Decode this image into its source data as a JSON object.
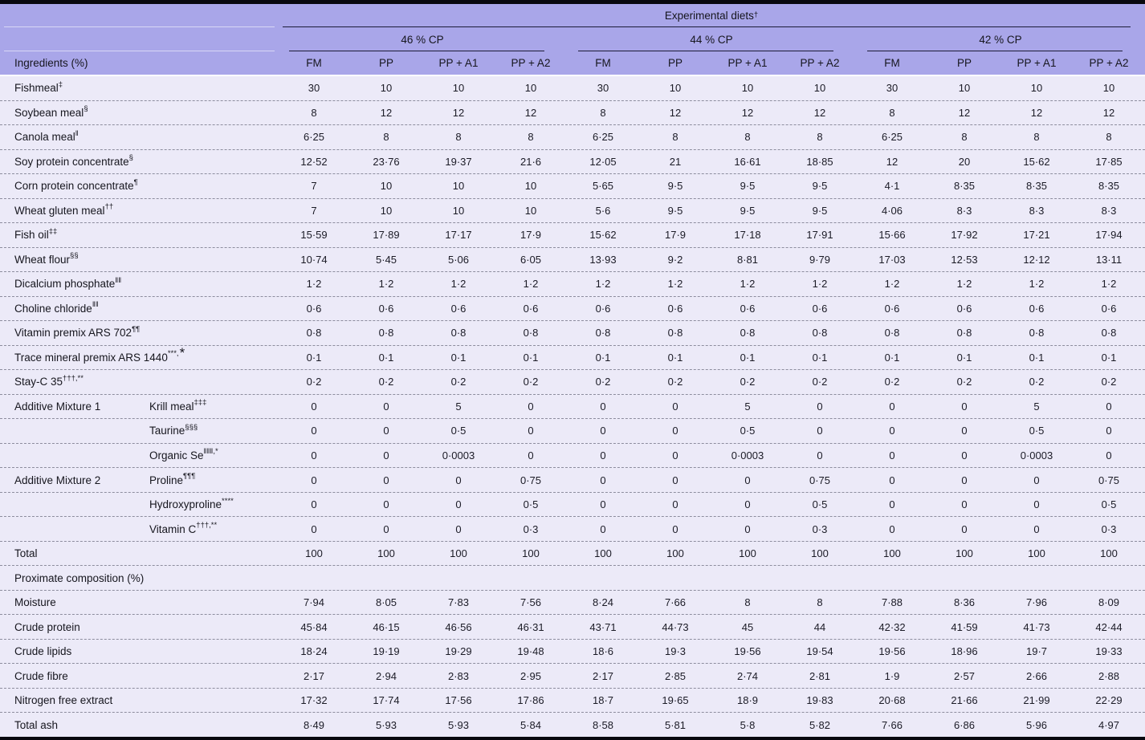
{
  "colors": {
    "header_bg": "#a9a6e9",
    "body_bg": "#eceaf8",
    "rule_dark": "#1c1c38",
    "border_black": "#08080f"
  },
  "header": {
    "title": "Experimental diets",
    "title_sup": "†",
    "row_header": "Ingredients (%)",
    "groups": [
      {
        "label": "46 % CP",
        "cols": [
          "FM",
          "PP",
          "PP + A1",
          "PP + A2"
        ]
      },
      {
        "label": "44 % CP",
        "cols": [
          "FM",
          "PP",
          "PP + A1",
          "PP + A2"
        ]
      },
      {
        "label": "42 % CP",
        "cols": [
          "FM",
          "PP",
          "PP + A1",
          "PP + A2"
        ]
      }
    ]
  },
  "table": {
    "rows": [
      {
        "label": "Fishmeal",
        "sup": "‡",
        "values": [
          "30",
          "10",
          "10",
          "10",
          "30",
          "10",
          "10",
          "10",
          "30",
          "10",
          "10",
          "10"
        ]
      },
      {
        "label": "Soybean meal",
        "sup": "§",
        "values": [
          "8",
          "12",
          "12",
          "12",
          "8",
          "12",
          "12",
          "12",
          "8",
          "12",
          "12",
          "12"
        ]
      },
      {
        "label": "Canola meal",
        "sup": "‖",
        "values": [
          "6·25",
          "8",
          "8",
          "8",
          "6·25",
          "8",
          "8",
          "8",
          "6·25",
          "8",
          "8",
          "8"
        ]
      },
      {
        "label": "Soy protein concentrate",
        "sup": "§",
        "values": [
          "12·52",
          "23·76",
          "19·37",
          "21·6",
          "12·05",
          "21",
          "16·61",
          "18·85",
          "12",
          "20",
          "15·62",
          "17·85"
        ]
      },
      {
        "label": "Corn protein concentrate",
        "sup": "¶",
        "values": [
          "7",
          "10",
          "10",
          "10",
          "5·65",
          "9·5",
          "9·5",
          "9·5",
          "4·1",
          "8·35",
          "8·35",
          "8·35"
        ]
      },
      {
        "label": "Wheat gluten meal",
        "sup": "††",
        "values": [
          "7",
          "10",
          "10",
          "10",
          "5·6",
          "9·5",
          "9·5",
          "9·5",
          "4·06",
          "8·3",
          "8·3",
          "8·3"
        ]
      },
      {
        "label": "Fish oil",
        "sup": "‡‡",
        "values": [
          "15·59",
          "17·89",
          "17·17",
          "17·9",
          "15·62",
          "17·9",
          "17·18",
          "17·91",
          "15·66",
          "17·92",
          "17·21",
          "17·94"
        ]
      },
      {
        "label": "Wheat flour",
        "sup": "§§",
        "values": [
          "10·74",
          "5·45",
          "5·06",
          "6·05",
          "13·93",
          "9·2",
          "8·81",
          "9·79",
          "17·03",
          "12·53",
          "12·12",
          "13·11"
        ]
      },
      {
        "label": "Dicalcium phosphate",
        "sup": "‖‖",
        "values": [
          "1·2",
          "1·2",
          "1·2",
          "1·2",
          "1·2",
          "1·2",
          "1·2",
          "1·2",
          "1·2",
          "1·2",
          "1·2",
          "1·2"
        ]
      },
      {
        "label": "Choline chloride",
        "sup": "‖‖",
        "values": [
          "0·6",
          "0·6",
          "0·6",
          "0·6",
          "0·6",
          "0·6",
          "0·6",
          "0·6",
          "0·6",
          "0·6",
          "0·6",
          "0·6"
        ]
      },
      {
        "label": "Vitamin premix ARS 702",
        "sup": "¶¶",
        "values": [
          "0·8",
          "0·8",
          "0·8",
          "0·8",
          "0·8",
          "0·8",
          "0·8",
          "0·8",
          "0·8",
          "0·8",
          "0·8",
          "0·8"
        ]
      },
      {
        "label": "Trace mineral premix ARS 1440",
        "sup": "***,",
        "star": "*",
        "values": [
          "0·1",
          "0·1",
          "0·1",
          "0·1",
          "0·1",
          "0·1",
          "0·1",
          "0·1",
          "0·1",
          "0·1",
          "0·1",
          "0·1"
        ]
      },
      {
        "label": "Stay-C 35",
        "sup": "†††,**",
        "values": [
          "0·2",
          "0·2",
          "0·2",
          "0·2",
          "0·2",
          "0·2",
          "0·2",
          "0·2",
          "0·2",
          "0·2",
          "0·2",
          "0·2"
        ]
      },
      {
        "group": "Additive Mixture 1",
        "label": "Krill meal",
        "sup": "‡‡‡",
        "values": [
          "0",
          "0",
          "5",
          "0",
          "0",
          "0",
          "5",
          "0",
          "0",
          "0",
          "5",
          "0"
        ]
      },
      {
        "sub": true,
        "label": "Taurine",
        "sup": "§§§",
        "values": [
          "0",
          "0",
          "0·5",
          "0",
          "0",
          "0",
          "0·5",
          "0",
          "0",
          "0",
          "0·5",
          "0"
        ]
      },
      {
        "sub": true,
        "label": "Organic Se",
        "sup": "‖‖‖,*",
        "values": [
          "0",
          "0",
          "0·0003",
          "0",
          "0",
          "0",
          "0·0003",
          "0",
          "0",
          "0",
          "0·0003",
          "0"
        ]
      },
      {
        "group": "Additive Mixture 2",
        "label": "Proline",
        "sup": "¶¶¶",
        "values": [
          "0",
          "0",
          "0",
          "0·75",
          "0",
          "0",
          "0",
          "0·75",
          "0",
          "0",
          "0",
          "0·75"
        ]
      },
      {
        "sub": true,
        "label": "Hydroxyproline",
        "sup": "****",
        "values": [
          "0",
          "0",
          "0",
          "0·5",
          "0",
          "0",
          "0",
          "0·5",
          "0",
          "0",
          "0",
          "0·5"
        ]
      },
      {
        "sub": true,
        "label": "Vitamin C",
        "sup": "†††,**",
        "values": [
          "0",
          "0",
          "0",
          "0·3",
          "0",
          "0",
          "0",
          "0·3",
          "0",
          "0",
          "0",
          "0·3"
        ]
      },
      {
        "label": "Total",
        "values": [
          "100",
          "100",
          "100",
          "100",
          "100",
          "100",
          "100",
          "100",
          "100",
          "100",
          "100",
          "100"
        ]
      },
      {
        "label": "Proximate composition (%)",
        "section": true,
        "values": []
      },
      {
        "label": "Moisture",
        "values": [
          "7·94",
          "8·05",
          "7·83",
          "7·56",
          "8·24",
          "7·66",
          "8",
          "8",
          "7·88",
          "8·36",
          "7·96",
          "8·09"
        ]
      },
      {
        "label": "Crude protein",
        "values": [
          "45·84",
          "46·15",
          "46·56",
          "46·31",
          "43·71",
          "44·73",
          "45",
          "44",
          "42·32",
          "41·59",
          "41·73",
          "42·44"
        ]
      },
      {
        "label": "Crude lipids",
        "values": [
          "18·24",
          "19·19",
          "19·29",
          "19·48",
          "18·6",
          "19·3",
          "19·56",
          "19·54",
          "19·56",
          "18·96",
          "19·7",
          "19·33"
        ]
      },
      {
        "label": "Crude fibre",
        "values": [
          "2·17",
          "2·94",
          "2·83",
          "2·95",
          "2·17",
          "2·85",
          "2·74",
          "2·81",
          "1·9",
          "2·57",
          "2·66",
          "2·88"
        ]
      },
      {
        "label": "Nitrogen free extract",
        "values": [
          "17·32",
          "17·74",
          "17·56",
          "17·86",
          "18·7",
          "19·65",
          "18·9",
          "19·83",
          "20·68",
          "21·66",
          "21·99",
          "22·29"
        ]
      },
      {
        "label": "Total ash",
        "values": [
          "8·49",
          "5·93",
          "5·93",
          "5·84",
          "8·58",
          "5·81",
          "5·8",
          "5·82",
          "7·66",
          "6·86",
          "5·96",
          "4·97"
        ]
      }
    ]
  }
}
